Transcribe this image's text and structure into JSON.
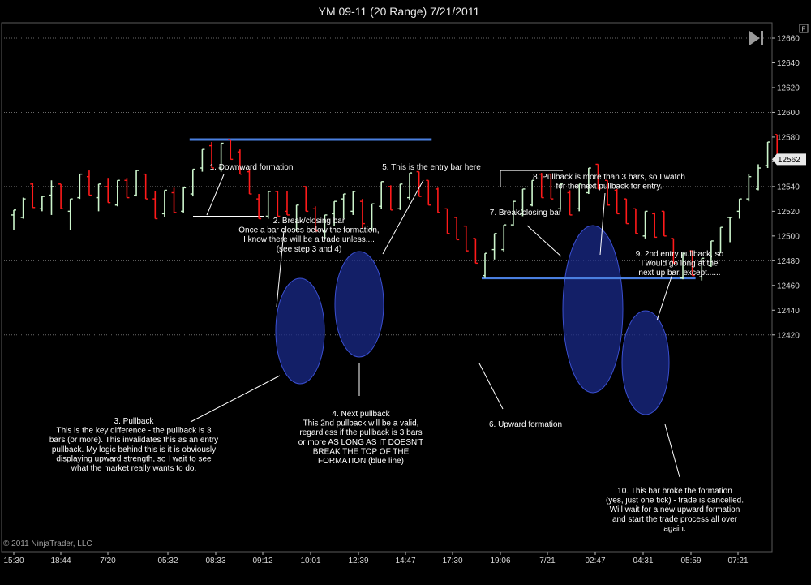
{
  "chart_data": {
    "type": "bar",
    "title": "YM 09-11 (20 Range)  7/21/2011",
    "copyright": "© 2011 NinjaTrader, LLC",
    "ylim": [
      12410,
      12665
    ],
    "y_ticks": [
      12420,
      12440,
      12460,
      12480,
      12500,
      12520,
      12540,
      12560,
      12580,
      12600,
      12620,
      12640,
      12660
    ],
    "y_major_gridlines": [
      12420,
      12480,
      12540,
      12600,
      12660
    ],
    "x_ticks": [
      "15:30",
      "18:44",
      "7/20",
      "05:32",
      "08:33",
      "09:12",
      "10:01",
      "12:39",
      "14:47",
      "17:30",
      "19:06",
      "7/21",
      "02:47",
      "04:31",
      "05:59",
      "07:21"
    ],
    "last_price": "12562",
    "bars": [
      {
        "o": 12517,
        "h": 12521,
        "l": 12505,
        "c": 12521
      },
      {
        "o": 12515,
        "h": 12531,
        "l": 12514,
        "c": 12530
      },
      {
        "o": 12542,
        "h": 12543,
        "l": 12523,
        "c": 12523
      },
      {
        "o": 12522,
        "h": 12532,
        "l": 12520,
        "c": 12532
      },
      {
        "o": 12533,
        "h": 12545,
        "l": 12517,
        "c": 12540
      },
      {
        "o": 12542,
        "h": 12542,
        "l": 12522,
        "c": 12522
      },
      {
        "o": 12520,
        "h": 12530,
        "l": 12505,
        "c": 12530
      },
      {
        "o": 12531,
        "h": 12550,
        "l": 12530,
        "c": 12550
      },
      {
        "o": 12548,
        "h": 12553,
        "l": 12533,
        "c": 12533
      },
      {
        "o": 12531,
        "h": 12542,
        "l": 12520,
        "c": 12542
      },
      {
        "o": 12540,
        "h": 12547,
        "l": 12527,
        "c": 12527
      },
      {
        "o": 12525,
        "h": 12545,
        "l": 12524,
        "c": 12545
      },
      {
        "o": 12545,
        "h": 12547,
        "l": 12531,
        "c": 12531
      },
      {
        "o": 12533,
        "h": 12553,
        "l": 12532,
        "c": 12553
      },
      {
        "o": 12550,
        "h": 12550,
        "l": 12530,
        "c": 12530
      },
      {
        "o": 12530,
        "h": 12536,
        "l": 12514,
        "c": 12514
      },
      {
        "o": 12518,
        "h": 12537,
        "l": 12515,
        "c": 12537
      },
      {
        "o": 12535,
        "h": 12539,
        "l": 12519,
        "c": 12519
      },
      {
        "o": 12520,
        "h": 12540,
        "l": 12519,
        "c": 12539
      },
      {
        "o": 12534,
        "h": 12554,
        "l": 12532,
        "c": 12554
      },
      {
        "o": 12555,
        "h": 12570,
        "l": 12552,
        "c": 12570
      },
      {
        "o": 12573,
        "h": 12576,
        "l": 12555,
        "c": 12555
      },
      {
        "o": 12555,
        "h": 12575,
        "l": 12552,
        "c": 12575
      },
      {
        "o": 12578,
        "h": 12578,
        "l": 12562,
        "c": 12562
      },
      {
        "o": 12568,
        "h": 12570,
        "l": 12550,
        "c": 12550
      },
      {
        "o": 12552,
        "h": 12554,
        "l": 12534,
        "c": 12534
      },
      {
        "o": 12530,
        "h": 12534,
        "l": 12514,
        "c": 12514
      },
      {
        "o": 12516,
        "h": 12536,
        "l": 12514,
        "c": 12536
      },
      {
        "o": 12536,
        "h": 12536,
        "l": 12516,
        "c": 12516
      },
      {
        "o": 12520,
        "h": 12536,
        "l": 12517,
        "c": 12517
      },
      {
        "o": 12505,
        "h": 12525,
        "l": 12504,
        "c": 12525
      },
      {
        "o": 12540,
        "h": 12540,
        "l": 12520,
        "c": 12520
      },
      {
        "o": 12522,
        "h": 12524,
        "l": 12504,
        "c": 12504
      },
      {
        "o": 12504,
        "h": 12517,
        "l": 12497,
        "c": 12517
      },
      {
        "o": 12518,
        "h": 12528,
        "l": 12508,
        "c": 12528
      },
      {
        "o": 12530,
        "h": 12534,
        "l": 12514,
        "c": 12534
      },
      {
        "o": 12520,
        "h": 12536,
        "l": 12517,
        "c": 12536
      },
      {
        "o": 12528,
        "h": 12530,
        "l": 12506,
        "c": 12510
      },
      {
        "o": 12506,
        "h": 12526,
        "l": 12504,
        "c": 12526
      },
      {
        "o": 12524,
        "h": 12544,
        "l": 12522,
        "c": 12544
      },
      {
        "o": 12540,
        "h": 12541,
        "l": 12521,
        "c": 12521
      },
      {
        "o": 12522,
        "h": 12542,
        "l": 12521,
        "c": 12542
      },
      {
        "o": 12531,
        "h": 12551,
        "l": 12529,
        "c": 12551
      },
      {
        "o": 12552,
        "h": 12552,
        "l": 12532,
        "c": 12532
      },
      {
        "o": 12545,
        "h": 12545,
        "l": 12525,
        "c": 12525
      },
      {
        "o": 12538,
        "h": 12539,
        "l": 12519,
        "c": 12519
      },
      {
        "o": 12522,
        "h": 12522,
        "l": 12502,
        "c": 12502
      },
      {
        "o": 12515,
        "h": 12515,
        "l": 12497,
        "c": 12497
      },
      {
        "o": 12508,
        "h": 12508,
        "l": 12488,
        "c": 12488
      },
      {
        "o": 12498,
        "h": 12498,
        "l": 12478,
        "c": 12478
      },
      {
        "o": 12468,
        "h": 12486,
        "l": 12466,
        "c": 12486
      },
      {
        "o": 12489,
        "h": 12502,
        "l": 12481,
        "c": 12502
      },
      {
        "o": 12489,
        "h": 12509,
        "l": 12487,
        "c": 12509
      },
      {
        "o": 12509,
        "h": 12528,
        "l": 12508,
        "c": 12528
      },
      {
        "o": 12518,
        "h": 12538,
        "l": 12516,
        "c": 12538
      },
      {
        "o": 12525,
        "h": 12545,
        "l": 12524,
        "c": 12545
      },
      {
        "o": 12550,
        "h": 12551,
        "l": 12531,
        "c": 12531
      },
      {
        "o": 12550,
        "h": 12550,
        "l": 12530,
        "c": 12530
      },
      {
        "o": 12522,
        "h": 12542,
        "l": 12521,
        "c": 12542
      },
      {
        "o": 12535,
        "h": 12537,
        "l": 12517,
        "c": 12517
      },
      {
        "o": 12522,
        "h": 12542,
        "l": 12520,
        "c": 12542
      },
      {
        "o": 12535,
        "h": 12555,
        "l": 12534,
        "c": 12555
      },
      {
        "o": 12558,
        "h": 12558,
        "l": 12538,
        "c": 12538
      },
      {
        "o": 12545,
        "h": 12545,
        "l": 12525,
        "c": 12525
      },
      {
        "o": 12537,
        "h": 12538,
        "l": 12518,
        "c": 12518
      },
      {
        "o": 12530,
        "h": 12530,
        "l": 12510,
        "c": 12510
      },
      {
        "o": 12522,
        "h": 12522,
        "l": 12502,
        "c": 12502
      },
      {
        "o": 12500,
        "h": 12520,
        "l": 12498,
        "c": 12520
      },
      {
        "o": 12518,
        "h": 12519,
        "l": 12499,
        "c": 12499
      },
      {
        "o": 12520,
        "h": 12520,
        "l": 12500,
        "c": 12500
      },
      {
        "o": 12498,
        "h": 12498,
        "l": 12478,
        "c": 12478
      },
      {
        "o": 12466,
        "h": 12486,
        "l": 12465,
        "c": 12486
      },
      {
        "o": 12488,
        "h": 12488,
        "l": 12468,
        "c": 12468
      },
      {
        "o": 12467,
        "h": 12482,
        "l": 12464,
        "c": 12482
      },
      {
        "o": 12476,
        "h": 12496,
        "l": 12475,
        "c": 12496
      },
      {
        "o": 12487,
        "h": 12507,
        "l": 12486,
        "c": 12507
      },
      {
        "o": 12515,
        "h": 12515,
        "l": 12495,
        "c": 12515
      },
      {
        "o": 12520,
        "h": 12530,
        "l": 12514,
        "c": 12530
      },
      {
        "o": 12530,
        "h": 12550,
        "l": 12528,
        "c": 12548
      },
      {
        "o": 12538,
        "h": 12558,
        "l": 12537,
        "c": 12555
      },
      {
        "o": 12557,
        "h": 12576,
        "l": 12555,
        "c": 12576
      },
      {
        "o": 12582,
        "h": 12582,
        "l": 12562,
        "c": 12562
      }
    ],
    "formation_lines": [
      {
        "name": "downward-formation",
        "y": 12578,
        "from_bar": 19,
        "to_bar": 44
      },
      {
        "name": "upward-formation",
        "y": 12466,
        "from_bar": 50,
        "to_bar": 72
      }
    ],
    "annotations": [
      {
        "lines": [
          "1. Downward formation"
        ]
      },
      {
        "lines": [
          "2. Break/closing bar",
          "Once a bar closes below the formation,",
          "I know there will be a trade unless....",
          "(see step 3 and 4)"
        ]
      },
      {
        "lines": [
          "3. Pullback",
          "This is the key difference - the pullback is 3",
          "bars (or more). This invalidates this as an entry",
          "pullback. My logic behind this is it is obviously",
          "displaying upward strength, so I wait to see",
          "what the market really wants to do."
        ]
      },
      {
        "lines": [
          "4. Next pullback",
          "This 2nd pullback will be a valid,",
          "regardless if the pullback is 3 bars",
          "or more AS LONG AS IT DOESN'T",
          "BREAK THE TOP OF THE",
          "FORMATION (blue line)"
        ]
      },
      {
        "lines": [
          "5. This is the entry bar here"
        ]
      },
      {
        "lines": [
          "6. Upward formation"
        ]
      },
      {
        "lines": [
          "7. Break/closing bar"
        ]
      },
      {
        "lines": [
          "8. Pullback is more than 3 bars, so I watch",
          "for the next pullback for entry."
        ]
      },
      {
        "lines": [
          "9. 2nd entry pullback, so",
          "I would go long at the",
          "next up bar, except......"
        ]
      },
      {
        "lines": [
          "10. This bar broke the formation",
          "(yes, just one tick) - trade is cancelled.",
          "Will wait for a new upward formation",
          "and start the trade process all over",
          "again."
        ]
      }
    ],
    "colors": {
      "up": "#ccf5cc",
      "down": "#ff1a1a",
      "formation": "#4a7fe0",
      "ellipse": "#1a2a8a"
    }
  }
}
